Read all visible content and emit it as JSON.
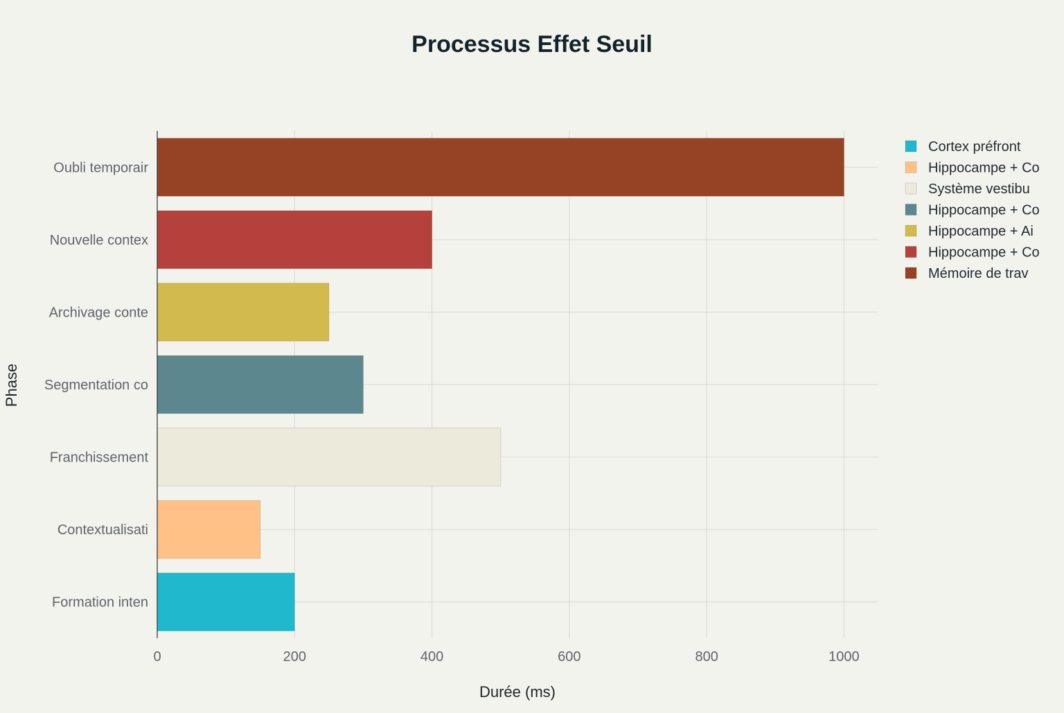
{
  "chart_data": {
    "type": "bar",
    "orientation": "horizontal",
    "title": "Processus Effet Seuil",
    "xlabel": "Durée (ms)",
    "ylabel": "Phase",
    "xlim": [
      0,
      1050
    ],
    "xticks": [
      0,
      200,
      400,
      600,
      800,
      1000
    ],
    "grid": true,
    "legend_position": "top-right",
    "categories": [
      "Formation inten",
      "Contextualisati",
      "Franchissement",
      "Segmentation co",
      "Archivage conte",
      "Nouvelle contex",
      "Oubli temporair"
    ],
    "series": [
      {
        "name": "Cortex préfront",
        "color": "#1fb8cd",
        "category": "Formation inten",
        "value": 200
      },
      {
        "name": "Hippocampe + Co",
        "color": "#ffc185",
        "category": "Contextualisati",
        "value": 150
      },
      {
        "name": "Système vestibu",
        "color": "#eceadb",
        "category": "Franchissement",
        "value": 500
      },
      {
        "name": "Hippocampe + Co",
        "color": "#5d878f",
        "category": "Segmentation co",
        "value": 300
      },
      {
        "name": "Hippocampe + Ai",
        "color": "#d2ba4c",
        "category": "Archivage conte",
        "value": 250
      },
      {
        "name": "Hippocampe + Co",
        "color": "#b4413c",
        "category": "Nouvelle contex",
        "value": 400
      },
      {
        "name": "Mémoire de trav",
        "color": "#964325",
        "category": "Oubli temporair",
        "value": 1000
      }
    ]
  }
}
